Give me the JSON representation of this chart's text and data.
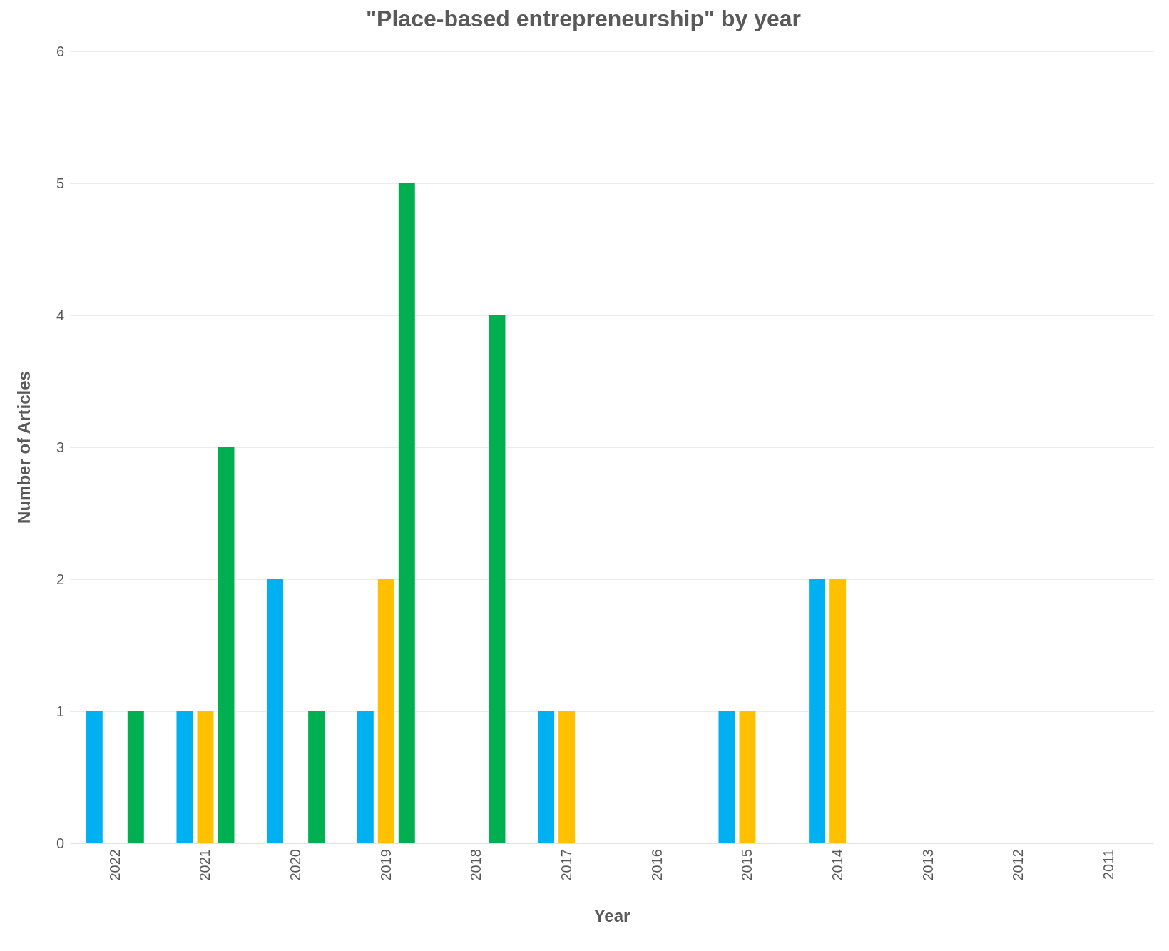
{
  "chart_data": {
    "type": "bar",
    "title": "\"Place-based entrepreneurship\" by year",
    "xlabel": "Year",
    "ylabel": "Number of Articles",
    "categories": [
      "2022",
      "2021",
      "2020",
      "2019",
      "2018",
      "2017",
      "2016",
      "2015",
      "2014",
      "2013",
      "2012",
      "2011"
    ],
    "series": [
      {
        "color": "#00b0f0",
        "values": [
          1,
          1,
          2,
          1,
          0,
          1,
          0,
          1,
          2,
          0,
          0,
          0
        ]
      },
      {
        "color": "#ffc000",
        "values": [
          0,
          1,
          0,
          2,
          0,
          1,
          0,
          1,
          2,
          0,
          0,
          0
        ]
      },
      {
        "color": "#00b050",
        "values": [
          1,
          3,
          1,
          5,
          4,
          0,
          0,
          0,
          0,
          0,
          0,
          0
        ]
      }
    ],
    "ylim": [
      0,
      6
    ],
    "yticks": [
      0,
      1,
      2,
      3,
      4,
      5,
      6
    ],
    "grid": "y",
    "legend": false
  }
}
